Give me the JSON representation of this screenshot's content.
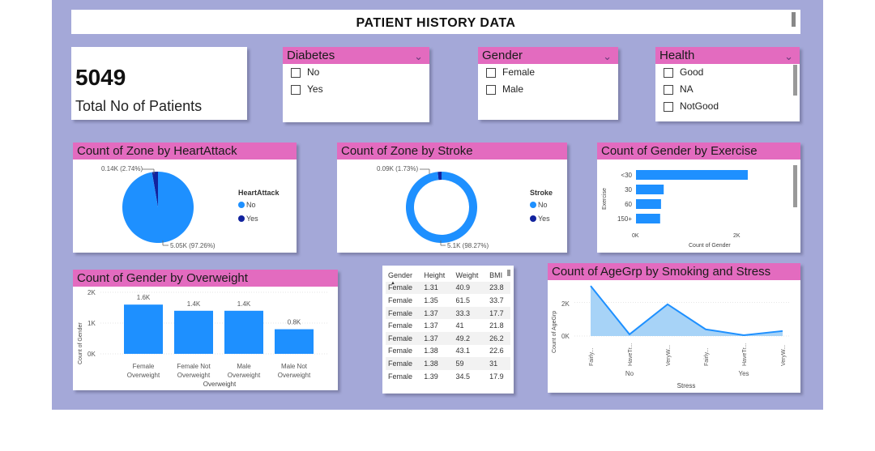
{
  "header": {
    "title": "PATIENT HISTORY DATA"
  },
  "kpi": {
    "value": "5049",
    "label": "Total No of Patients"
  },
  "slicers": [
    {
      "title": "Diabetes",
      "options": [
        "No",
        "Yes"
      ]
    },
    {
      "title": "Gender",
      "options": [
        "Female",
        "Male"
      ]
    },
    {
      "title": "Health",
      "options": [
        "Good",
        "NA",
        "NotGood"
      ]
    }
  ],
  "heartattack": {
    "title": "Count of Zone by HeartAttack",
    "legend_title": "HeartAttack",
    "legend": [
      "No",
      "Yes"
    ],
    "label_small": "0.14K (2.74%)",
    "label_large": "5.05K (97.26%)",
    "colors": {
      "No": "#1e90ff",
      "Yes": "#12239e"
    }
  },
  "stroke": {
    "title": "Count of Zone by Stroke",
    "legend_title": "Stroke",
    "legend": [
      "No",
      "Yes"
    ],
    "label_small": "0.09K (1.73%)",
    "label_large": "5.1K (98.27%)",
    "colors": {
      "No": "#1e90ff",
      "Yes": "#12239e"
    }
  },
  "exercise": {
    "title": "Count of Gender by Exercise",
    "ylabel": "Exercise",
    "xlabel": "Count of Gender",
    "xticks": [
      "0K",
      "2K"
    ]
  },
  "overweight": {
    "title": "Count of Gender by Overweight",
    "ylabel": "Count of Gender",
    "xlabel": "Overweight",
    "yticks": [
      "2K",
      "1K",
      "0K"
    ],
    "data_labels": [
      "1.6K",
      "1.4K",
      "1.4K",
      "0.8K"
    ],
    "cat_lines": [
      [
        "Female",
        "Overweight"
      ],
      [
        "Female Not",
        "Overweight"
      ],
      [
        "Male",
        "Overweight"
      ],
      [
        "Male Not",
        "Overweight"
      ]
    ]
  },
  "table": {
    "columns": [
      "Gender",
      "Height",
      "Weight",
      "BMI"
    ],
    "rows": [
      [
        "Female",
        "1.31",
        "40.9",
        "23.8"
      ],
      [
        "Female",
        "1.35",
        "61.5",
        "33.7"
      ],
      [
        "Female",
        "1.37",
        "33.3",
        "17.7"
      ],
      [
        "Female",
        "1.37",
        "41",
        "21.8"
      ],
      [
        "Female",
        "1.37",
        "49.2",
        "26.2"
      ],
      [
        "Female",
        "1.38",
        "43.1",
        "22.6"
      ],
      [
        "Female",
        "1.38",
        "59",
        "31"
      ],
      [
        "Female",
        "1.39",
        "34.5",
        "17.9"
      ]
    ]
  },
  "agegrp": {
    "title": "Count of AgeGrp by Smoking and Stress",
    "ylabel": "Count of AgeGrp",
    "xlabel": "Stress",
    "yticks": [
      "2K",
      "0K"
    ],
    "x_labels": [
      "Fairly...",
      "HaveTr...",
      "VeryW...",
      "Fairly...",
      "HaveTr...",
      "VeryW..."
    ],
    "group_labels": [
      "No",
      "Yes"
    ]
  },
  "chart_data": [
    {
      "type": "pie",
      "title": "Count of Zone by HeartAttack",
      "legend_title": "HeartAttack",
      "categories": [
        "No",
        "Yes"
      ],
      "values": [
        5050,
        140
      ],
      "percent": [
        97.26,
        2.74
      ]
    },
    {
      "type": "pie",
      "title": "Count of Zone by Stroke",
      "legend_title": "Stroke",
      "donut": true,
      "categories": [
        "No",
        "Yes"
      ],
      "values": [
        5100,
        90
      ],
      "percent": [
        98.27,
        1.73
      ]
    },
    {
      "type": "bar",
      "orientation": "horizontal",
      "title": "Count of Gender by Exercise",
      "categories": [
        "<30",
        "30",
        "60",
        "150+"
      ],
      "values": [
        2500,
        620,
        560,
        540
      ],
      "xlim": [
        0,
        2700
      ],
      "xlabel": "Count of Gender",
      "ylabel": "Exercise",
      "color": "#1e90ff"
    },
    {
      "type": "bar",
      "title": "Count of Gender by Overweight",
      "categories": [
        "Female Overweight",
        "Female Not Overweight",
        "Male Overweight",
        "Male Not Overweight"
      ],
      "values": [
        1600,
        1400,
        1400,
        800
      ],
      "ylim": [
        0,
        2000
      ],
      "xlabel": "Overweight",
      "ylabel": "Count of Gender",
      "color": "#1e90ff"
    },
    {
      "type": "area",
      "title": "Count of AgeGrp by Smoking and Stress",
      "categories": [
        "No / Fairly...",
        "No / HaveTr...",
        "No / VeryW...",
        "Yes / Fairly...",
        "Yes / HaveTr...",
        "Yes / VeryW..."
      ],
      "values": [
        3000,
        100,
        1900,
        400,
        50,
        300
      ],
      "ylim": [
        0,
        3200
      ],
      "xlabel": "Stress",
      "ylabel": "Count of AgeGrp",
      "color": "#1e90ff"
    }
  ]
}
